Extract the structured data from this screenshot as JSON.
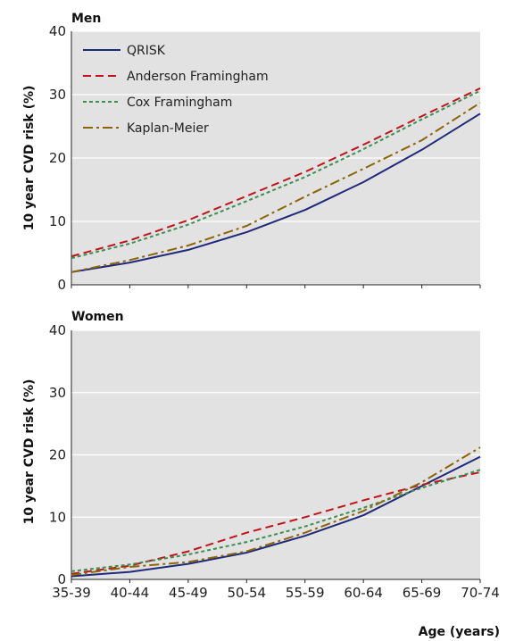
{
  "chart_data": [
    {
      "type": "line",
      "panel": "men",
      "title": "Men",
      "ylabel": "10 year CVD risk (%)",
      "xlabel": "",
      "categories": [
        "35-39",
        "40-44",
        "45-49",
        "50-54",
        "55-59",
        "60-64",
        "65-69",
        "70-74"
      ],
      "ylim": [
        0,
        40
      ],
      "yticks": [
        "0",
        "10",
        "20",
        "30",
        "40"
      ],
      "grid": true,
      "legend_position": "top-left",
      "series": [
        {
          "name": "QRISK",
          "values": [
            2.0,
            3.5,
            5.5,
            8.3,
            11.8,
            16.2,
            21.3,
            27.0
          ],
          "color": "#1f2a7a",
          "dash": "solid"
        },
        {
          "name": "Anderson Framingham",
          "values": [
            4.5,
            7.0,
            10.2,
            14.0,
            17.8,
            22.1,
            26.6,
            31.0
          ],
          "color": "#c0141b",
          "dash": "dashed"
        },
        {
          "name": "Cox Framingham",
          "values": [
            4.2,
            6.5,
            9.5,
            13.2,
            17.0,
            21.4,
            26.1,
            30.6
          ],
          "color": "#3a8f55",
          "dash": "dotted"
        },
        {
          "name": "Kaplan-Meier",
          "values": [
            2.0,
            3.9,
            6.2,
            9.3,
            13.9,
            18.3,
            22.8,
            28.7
          ],
          "color": "#8b6508",
          "dash": "dashdot"
        }
      ]
    },
    {
      "type": "line",
      "panel": "women",
      "title": "Women",
      "ylabel": "10 year CVD risk (%)",
      "xlabel": "Age (years)",
      "categories": [
        "35-39",
        "40-44",
        "45-49",
        "50-54",
        "55-59",
        "60-64",
        "65-69",
        "70-74"
      ],
      "ylim": [
        0,
        40
      ],
      "yticks": [
        "0",
        "10",
        "20",
        "30",
        "40"
      ],
      "grid": true,
      "legend_position": "none",
      "series": [
        {
          "name": "QRISK",
          "values": [
            0.5,
            1.2,
            2.5,
            4.3,
            7.0,
            10.3,
            15.0,
            19.7
          ],
          "color": "#1f2a7a",
          "dash": "solid"
        },
        {
          "name": "Anderson Framingham",
          "values": [
            0.9,
            2.2,
            4.5,
            7.5,
            10.0,
            12.7,
            15.2,
            17.2
          ],
          "color": "#c0141b",
          "dash": "dashed"
        },
        {
          "name": "Cox Framingham",
          "values": [
            1.3,
            2.4,
            4.0,
            6.0,
            8.5,
            11.5,
            14.7,
            17.6
          ],
          "color": "#3a8f55",
          "dash": "dotted"
        },
        {
          "name": "Kaplan-Meier",
          "values": [
            0.7,
            2.0,
            2.8,
            4.5,
            7.5,
            11.0,
            15.6,
            21.2
          ],
          "color": "#8b6508",
          "dash": "dashdot"
        }
      ]
    }
  ],
  "colors": {
    "plot_background": "#e2e2e2",
    "gridline": "#ffffff",
    "axis": "#222222"
  }
}
